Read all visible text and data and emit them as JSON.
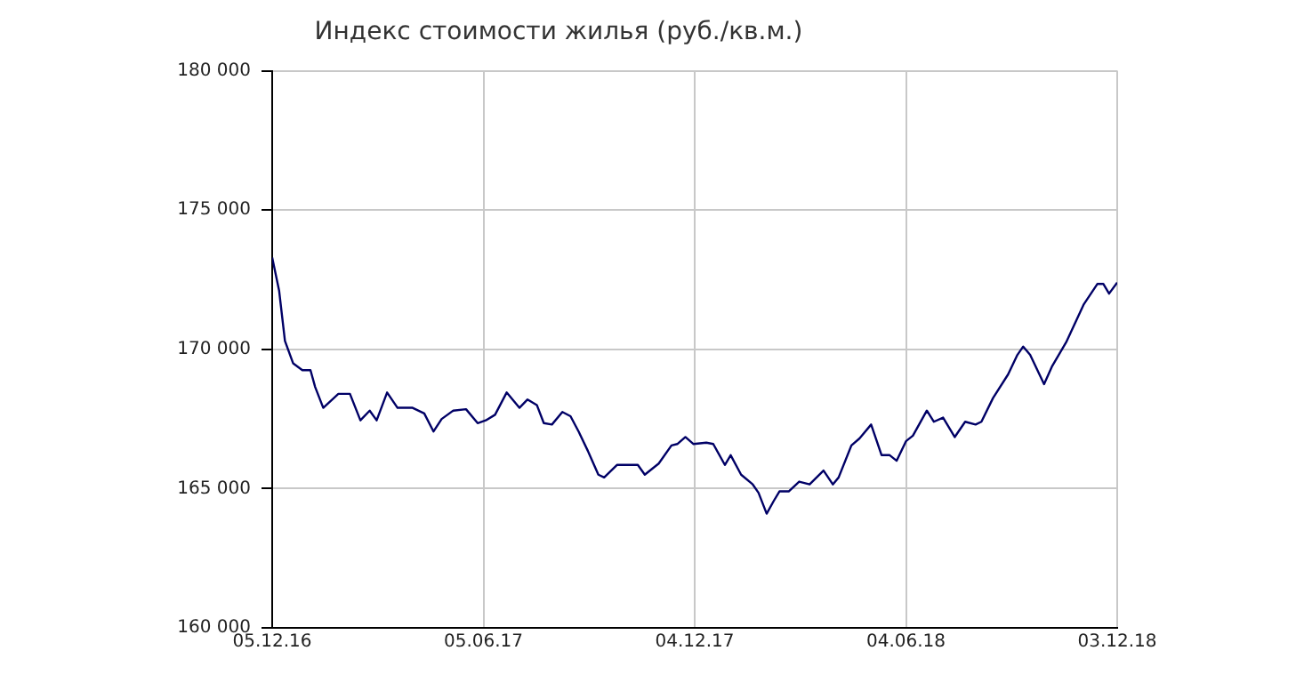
{
  "chart_data": {
    "type": "line",
    "title": "Индекс стоимости жилья (руб./кв.м.)",
    "x": [
      "2016-12-05",
      "2016-12-11",
      "2016-12-16",
      "2016-12-23",
      "2016-12-31",
      "2017-01-07",
      "2017-01-11",
      "2017-01-18",
      "2017-01-31",
      "2017-02-10",
      "2017-02-19",
      "2017-02-27",
      "2017-03-05",
      "2017-03-14",
      "2017-03-23",
      "2017-04-05",
      "2017-04-15",
      "2017-04-23",
      "2017-04-30",
      "2017-05-10",
      "2017-05-21",
      "2017-05-31",
      "2017-06-07",
      "2017-06-15",
      "2017-06-25",
      "2017-07-06",
      "2017-07-13",
      "2017-07-21",
      "2017-07-27",
      "2017-08-03",
      "2017-08-12",
      "2017-08-19",
      "2017-08-26",
      "2017-09-03",
      "2017-09-12",
      "2017-09-17",
      "2017-09-28",
      "2017-10-16",
      "2017-10-22",
      "2017-11-03",
      "2017-11-14",
      "2017-11-19",
      "2017-11-26",
      "2017-12-03",
      "2017-12-14",
      "2017-12-20",
      "2017-12-30",
      "2018-01-04",
      "2018-01-13",
      "2018-01-23",
      "2018-01-28",
      "2018-02-04",
      "2018-02-10",
      "2018-02-15",
      "2018-02-23",
      "2018-03-04",
      "2018-03-13",
      "2018-03-25",
      "2018-04-02",
      "2018-04-07",
      "2018-04-18",
      "2018-04-25",
      "2018-05-05",
      "2018-05-14",
      "2018-05-21",
      "2018-05-27",
      "2018-06-04",
      "2018-06-10",
      "2018-06-22",
      "2018-06-28",
      "2018-07-06",
      "2018-07-16",
      "2018-07-25",
      "2018-08-03",
      "2018-08-08",
      "2018-08-18",
      "2018-08-31",
      "2018-09-08",
      "2018-09-13",
      "2018-09-19",
      "2018-10-01",
      "2018-10-08",
      "2018-10-20",
      "2018-11-04",
      "2018-11-16",
      "2018-11-21",
      "2018-11-26",
      "2018-12-03"
    ],
    "series": [
      {
        "color": "#000066",
        "values": [
          173300,
          172100,
          170300,
          169500,
          169250,
          169250,
          168650,
          167900,
          168400,
          168400,
          167450,
          167800,
          167450,
          168450,
          167900,
          167900,
          167700,
          167050,
          167500,
          167800,
          167850,
          167350,
          167450,
          167650,
          168450,
          167900,
          168200,
          168000,
          167350,
          167300,
          167750,
          167600,
          167050,
          166350,
          165500,
          165400,
          165850,
          165850,
          165500,
          165900,
          166550,
          166600,
          166850,
          166600,
          166650,
          166600,
          165850,
          166200,
          165500,
          165150,
          164850,
          164100,
          164550,
          164900,
          164900,
          165250,
          165150,
          165650,
          165150,
          165400,
          166550,
          166800,
          167300,
          166200,
          166200,
          166000,
          166700,
          166900,
          167800,
          167400,
          167550,
          166850,
          167400,
          167300,
          167400,
          168250,
          169100,
          169800,
          170100,
          169800,
          168750,
          169400,
          170250,
          171600,
          172350,
          172350,
          172000,
          172400
        ]
      }
    ],
    "xlim": [
      "2016-12-05",
      "2018-12-03"
    ],
    "xticks": [
      {
        "value": "2016-12-05",
        "label": "05.12.16"
      },
      {
        "value": "2017-06-05",
        "label": "05.06.17"
      },
      {
        "value": "2017-12-04",
        "label": "04.12.17"
      },
      {
        "value": "2018-06-04",
        "label": "04.06.18"
      },
      {
        "value": "2018-12-03",
        "label": "03.12.18"
      }
    ],
    "ylim": [
      160000,
      180000
    ],
    "yticks": [
      {
        "value": 160000,
        "label": "160 000"
      },
      {
        "value": 165000,
        "label": "165 000"
      },
      {
        "value": 170000,
        "label": "170 000"
      },
      {
        "value": 175000,
        "label": "175 000"
      },
      {
        "value": 180000,
        "label": "180 000"
      }
    ],
    "grid": true,
    "marker": "none",
    "line_style": "solid"
  }
}
